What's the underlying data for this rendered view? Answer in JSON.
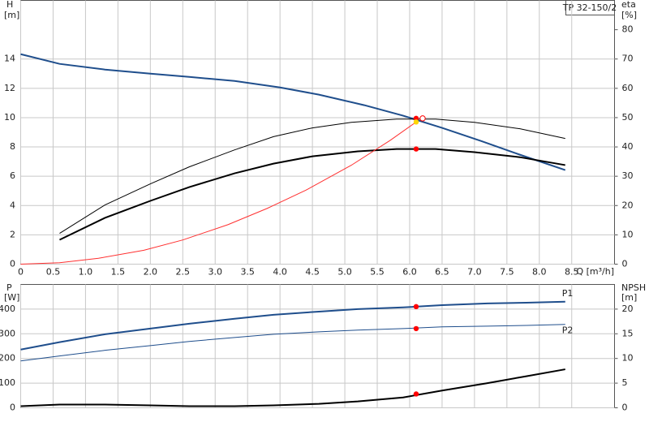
{
  "chart_data": [
    {
      "type": "line",
      "title": "TP 32-150/2",
      "y_label": "H",
      "y_unit": "[m]",
      "y2_label": "eta",
      "y2_unit": "[%]",
      "x_label": "Q [m³/h]",
      "xlim": [
        0,
        9.16
      ],
      "ylim": [
        0,
        18
      ],
      "y2lim": [
        0,
        90
      ],
      "grid": true,
      "xticks": [
        0,
        0.5,
        {
          "value": 1,
          "label": "1.0"
        },
        1.5,
        {
          "value": 2,
          "label": "2.0"
        },
        2.5,
        {
          "value": 3,
          "label": "3.0"
        },
        3.5,
        {
          "value": 4,
          "label": "4.0"
        },
        4.5,
        {
          "value": 5,
          "label": "5.0"
        },
        5.5,
        {
          "value": 6,
          "label": "6.0"
        },
        6.5,
        {
          "value": 7,
          "label": "7.0"
        },
        7.5,
        {
          "value": 8,
          "label": "8.0"
        },
        8.5
      ],
      "yticks": [
        0,
        2,
        4,
        6,
        8,
        10,
        12,
        14
      ],
      "y2ticks": [
        0,
        10,
        20,
        30,
        40,
        50,
        60,
        70,
        80
      ],
      "series": [
        {
          "color": "#1f4e8c",
          "width": 2,
          "x": [
            0,
            0.6,
            1.3,
            2,
            2.6,
            3.3,
            4,
            4.6,
            5.3,
            5.9,
            6.5,
            7.1,
            7.7,
            8.4
          ],
          "values": [
            14.33,
            13.67,
            13.28,
            13.0,
            12.78,
            12.5,
            12.06,
            11.57,
            10.85,
            10.13,
            9.3,
            8.41,
            7.47,
            6.42
          ]
        },
        {
          "color": "#000000",
          "width": 1,
          "axis": "y2",
          "x": [
            0.6,
            1.3,
            2,
            2.6,
            3.3,
            3.9,
            4.5,
            5.1,
            5.8,
            6.4,
            7.0,
            7.7,
            8.4
          ],
          "values": [
            10.5,
            20.2,
            27.4,
            33.2,
            39,
            43.5,
            46.5,
            48.4,
            49.5,
            49.5,
            48.4,
            46.2,
            42.9
          ]
        },
        {
          "color": "#000000",
          "width": 2,
          "axis": "y2",
          "x": [
            0.6,
            1.3,
            2,
            2.6,
            3.3,
            3.9,
            4.5,
            5.2,
            5.8,
            6.4,
            7.0,
            7.7,
            8.4
          ],
          "values": [
            8.3,
            15.8,
            21.6,
            26.3,
            31,
            34.3,
            36.8,
            38.5,
            39.3,
            39.3,
            38.2,
            36.5,
            33.8
          ]
        },
        {
          "color": "#ff3030",
          "width": 1,
          "x": [
            0,
            0.6,
            1.2,
            1.9,
            2.5,
            3.2,
            3.8,
            4.4,
            5.1,
            5.7,
            6.1
          ],
          "values": [
            0,
            0.1,
            0.4,
            0.95,
            1.65,
            2.7,
            3.8,
            5.05,
            6.75,
            8.45,
            9.7
          ]
        }
      ],
      "points": [
        {
          "x": 6.1,
          "y": 9.95,
          "color": "#ff0000"
        },
        {
          "x": 6.1,
          "y": 9.7,
          "color": "#ffd700"
        },
        {
          "x": 6.2,
          "y": 9.95,
          "color": "#ffffff"
        },
        {
          "x": 6.1,
          "y": 39.3,
          "color": "#ff0000",
          "axis": "y2"
        }
      ]
    },
    {
      "type": "line",
      "y_label": "P",
      "y_unit": "[W]",
      "y2_label": "NPSH",
      "y2_unit": "[m]",
      "xlim": [
        0,
        9.16
      ],
      "ylim": [
        0,
        500
      ],
      "y2lim": [
        0,
        25
      ],
      "grid": true,
      "yticks": [
        0,
        100,
        200,
        300,
        400
      ],
      "y2ticks": [
        0,
        5,
        10,
        15,
        20
      ],
      "series": [
        {
          "name": "P1",
          "color": "#1f4e8c",
          "width": 2,
          "x": [
            0,
            0.6,
            1.3,
            2,
            2.6,
            3.3,
            3.9,
            4.6,
            5.2,
            5.9,
            6.5,
            7.2,
            7.8,
            8.4
          ],
          "values": [
            236,
            266,
            298,
            321,
            341,
            361,
            377,
            390,
            400,
            407,
            416,
            423,
            426,
            430
          ]
        },
        {
          "name": "P2",
          "color": "#1f4e8c",
          "width": 1,
          "x": [
            0,
            0.6,
            1.3,
            2,
            2.6,
            3.3,
            3.9,
            4.6,
            5.2,
            5.9,
            6.5,
            7.2,
            7.8,
            8.4
          ],
          "values": [
            190,
            210,
            233,
            252,
            269,
            285,
            298,
            308,
            315,
            321,
            328,
            331,
            334,
            338
          ]
        },
        {
          "color": "#000000",
          "width": 2,
          "axis": "y2",
          "x": [
            0,
            0.6,
            1.3,
            2,
            2.6,
            3.3,
            3.9,
            4.6,
            5.2,
            5.9,
            6.5,
            7.2,
            7.8,
            8.4
          ],
          "values": [
            0.33,
            0.66,
            0.66,
            0.5,
            0.33,
            0.33,
            0.5,
            0.8,
            1.3,
            2.1,
            3.5,
            5,
            6.4,
            7.8
          ]
        }
      ],
      "points": [
        {
          "x": 6.1,
          "y": 410,
          "color": "#ff0000"
        },
        {
          "x": 6.1,
          "y": 321,
          "color": "#ff0000"
        },
        {
          "x": 6.1,
          "y": 2.8,
          "color": "#ff0000",
          "axis": "y2"
        }
      ]
    }
  ]
}
